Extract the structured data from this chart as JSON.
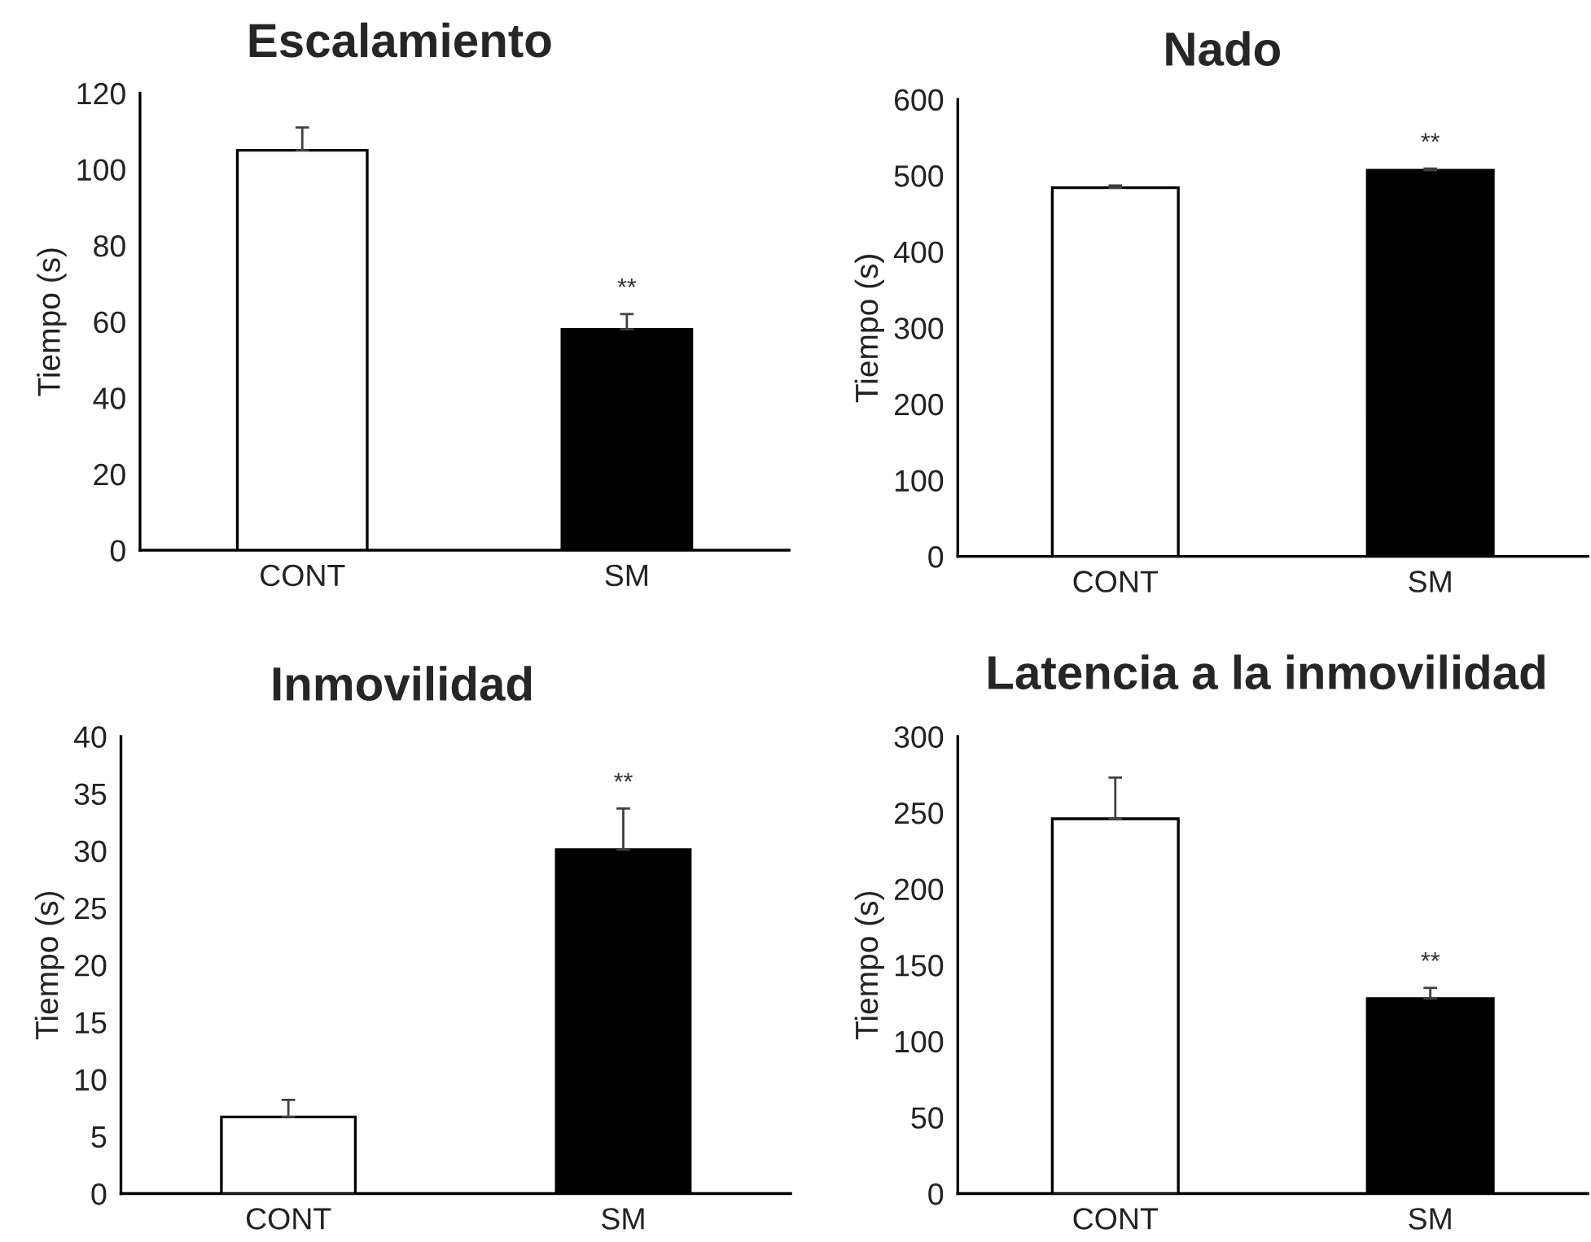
{
  "chart_data": [
    {
      "type": "bar",
      "title": "Escalamiento",
      "ylabel": "Tiempo (s)",
      "categories": [
        "CONT",
        "SM"
      ],
      "values": [
        105,
        58
      ],
      "colors": [
        "#ffffff",
        "#000000"
      ],
      "errors": [
        [
          105,
          111
        ],
        [
          58,
          62
        ]
      ],
      "ylim": [
        0,
        120
      ],
      "yticks": [
        0,
        20,
        40,
        60,
        80,
        100,
        120
      ],
      "annotations": [
        "**"
      ]
    },
    {
      "type": "bar",
      "title": "Nado",
      "ylabel": "Tiempo (s)",
      "categories": [
        "CONT",
        "SM"
      ],
      "values": [
        484,
        507
      ],
      "colors": [
        "#ffffff",
        "#000000"
      ],
      "errors": [
        [
          484,
          487
        ],
        [
          507,
          509
        ]
      ],
      "ylim": [
        0,
        600
      ],
      "yticks": [
        0,
        100,
        200,
        300,
        400,
        500,
        600
      ],
      "annotations": [
        "**"
      ]
    },
    {
      "type": "bar",
      "title": "Inmovilidad",
      "ylabel": "Tiempo (s)",
      "categories": [
        "CONT",
        "SM"
      ],
      "values": [
        6.7,
        30.1
      ],
      "colors": [
        "#ffffff",
        "#000000"
      ],
      "errors": [
        [
          6.7,
          8.2
        ],
        [
          30.1,
          33.7
        ]
      ],
      "ylim": [
        0,
        40
      ],
      "yticks": [
        0,
        5,
        10,
        15,
        20,
        25,
        30,
        35,
        40
      ],
      "annotations": [
        "**"
      ]
    },
    {
      "type": "bar",
      "title": "Latencia a la inmovilidad",
      "ylabel": "Tiempo (s)",
      "categories": [
        "CONT",
        "SM"
      ],
      "values": [
        246,
        128
      ],
      "colors": [
        "#ffffff",
        "#000000"
      ],
      "errors": [
        [
          246,
          273
        ],
        [
          128,
          135
        ]
      ],
      "ylim": [
        0,
        300
      ],
      "yticks": [
        0,
        50,
        100,
        150,
        200,
        250,
        300
      ],
      "annotations": [
        "**"
      ]
    }
  ]
}
